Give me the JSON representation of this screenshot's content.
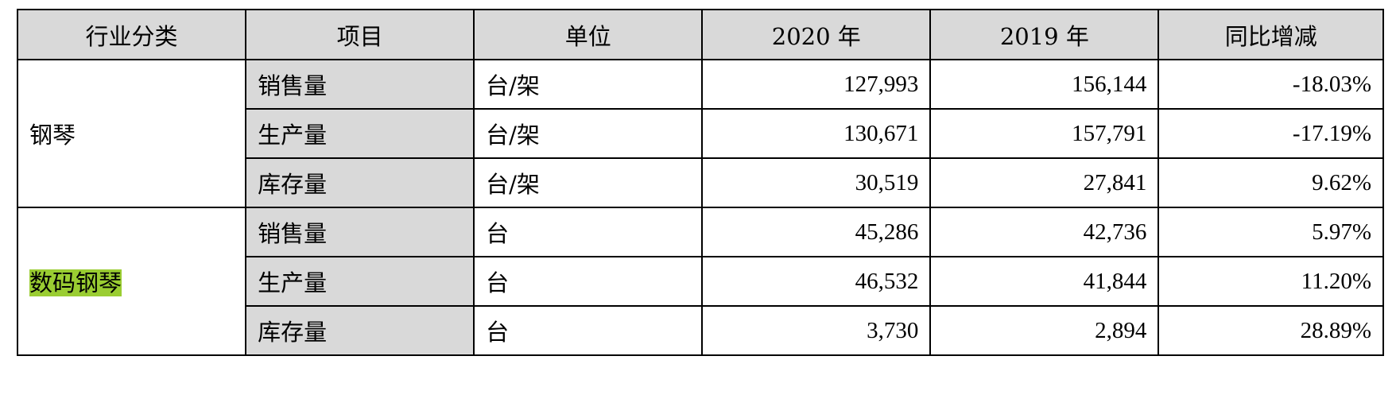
{
  "headers": [
    "行业分类",
    "项目",
    "单位",
    "2020 年",
    "2019 年",
    "同比增减"
  ],
  "groups": [
    {
      "category": "钢琴",
      "highlighted": false,
      "rows": [
        {
          "item": "销售量",
          "unit": "台/架",
          "y2020": "127,993",
          "y2019": "156,144",
          "change": "-18.03%"
        },
        {
          "item": "生产量",
          "unit": "台/架",
          "y2020": "130,671",
          "y2019": "157,791",
          "change": "-17.19%"
        },
        {
          "item": "库存量",
          "unit": "台/架",
          "y2020": "30,519",
          "y2019": "27,841",
          "change": "9.62%"
        }
      ]
    },
    {
      "category": "数码钢琴",
      "highlighted": true,
      "highlight_color": "#9acd32",
      "rows": [
        {
          "item": "销售量",
          "unit": "台",
          "y2020": "45,286",
          "y2019": "42,736",
          "change": "5.97%"
        },
        {
          "item": "生产量",
          "unit": "台",
          "y2020": "46,532",
          "y2019": "41,844",
          "change": "11.20%"
        },
        {
          "item": "库存量",
          "unit": "台",
          "y2020": "3,730",
          "y2019": "2,894",
          "change": "28.89%"
        }
      ]
    }
  ]
}
